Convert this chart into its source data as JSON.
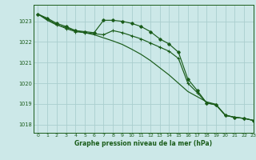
{
  "title": "Graphe pression niveau de la mer (hPa)",
  "bg_color": "#cce8e8",
  "grid_color": "#aacece",
  "line_color": "#1a5c1a",
  "xlim": [
    -0.5,
    23
  ],
  "ylim": [
    1017.6,
    1023.8
  ],
  "yticks": [
    1018,
    1019,
    1020,
    1021,
    1022,
    1023
  ],
  "xticks": [
    0,
    1,
    2,
    3,
    4,
    5,
    6,
    7,
    8,
    9,
    10,
    11,
    12,
    13,
    14,
    15,
    16,
    17,
    18,
    19,
    20,
    21,
    22,
    23
  ],
  "series1_x": [
    0,
    1,
    2,
    3,
    4,
    5,
    6,
    7,
    8,
    9,
    10,
    11,
    12,
    13,
    14,
    15,
    16,
    17,
    18,
    19,
    20,
    21,
    22,
    23
  ],
  "series1_y": [
    1023.35,
    1023.15,
    1022.9,
    1022.75,
    1022.55,
    1022.5,
    1022.45,
    1023.05,
    1023.05,
    1023.0,
    1022.9,
    1022.75,
    1022.5,
    1022.15,
    1021.9,
    1021.5,
    1020.2,
    1019.65,
    1019.05,
    1018.95,
    1018.45,
    1018.35,
    1018.3,
    1018.2
  ],
  "series2_x": [
    0,
    1,
    2,
    3,
    4,
    5,
    6,
    7,
    8,
    9,
    10,
    11,
    12,
    13,
    14,
    15,
    16,
    17,
    18,
    19,
    20,
    21,
    22,
    23
  ],
  "series2_y": [
    1023.35,
    1023.1,
    1022.85,
    1022.65,
    1022.5,
    1022.45,
    1022.4,
    1022.35,
    1022.55,
    1022.45,
    1022.3,
    1022.15,
    1021.95,
    1021.75,
    1021.55,
    1021.2,
    1020.0,
    1019.55,
    1019.05,
    1018.95,
    1018.45,
    1018.35,
    1018.3,
    1018.2
  ],
  "series3_x": [
    0,
    1,
    2,
    3,
    4,
    5,
    6,
    7,
    8,
    9,
    10,
    11,
    12,
    13,
    14,
    15,
    16,
    17,
    18,
    19,
    20,
    21,
    22,
    23
  ],
  "series3_y": [
    1023.35,
    1023.05,
    1022.82,
    1022.7,
    1022.55,
    1022.45,
    1022.35,
    1022.2,
    1022.05,
    1021.88,
    1021.65,
    1021.4,
    1021.1,
    1020.75,
    1020.4,
    1020.0,
    1019.6,
    1019.35,
    1019.1,
    1018.98,
    1018.45,
    1018.35,
    1018.3,
    1018.2
  ]
}
